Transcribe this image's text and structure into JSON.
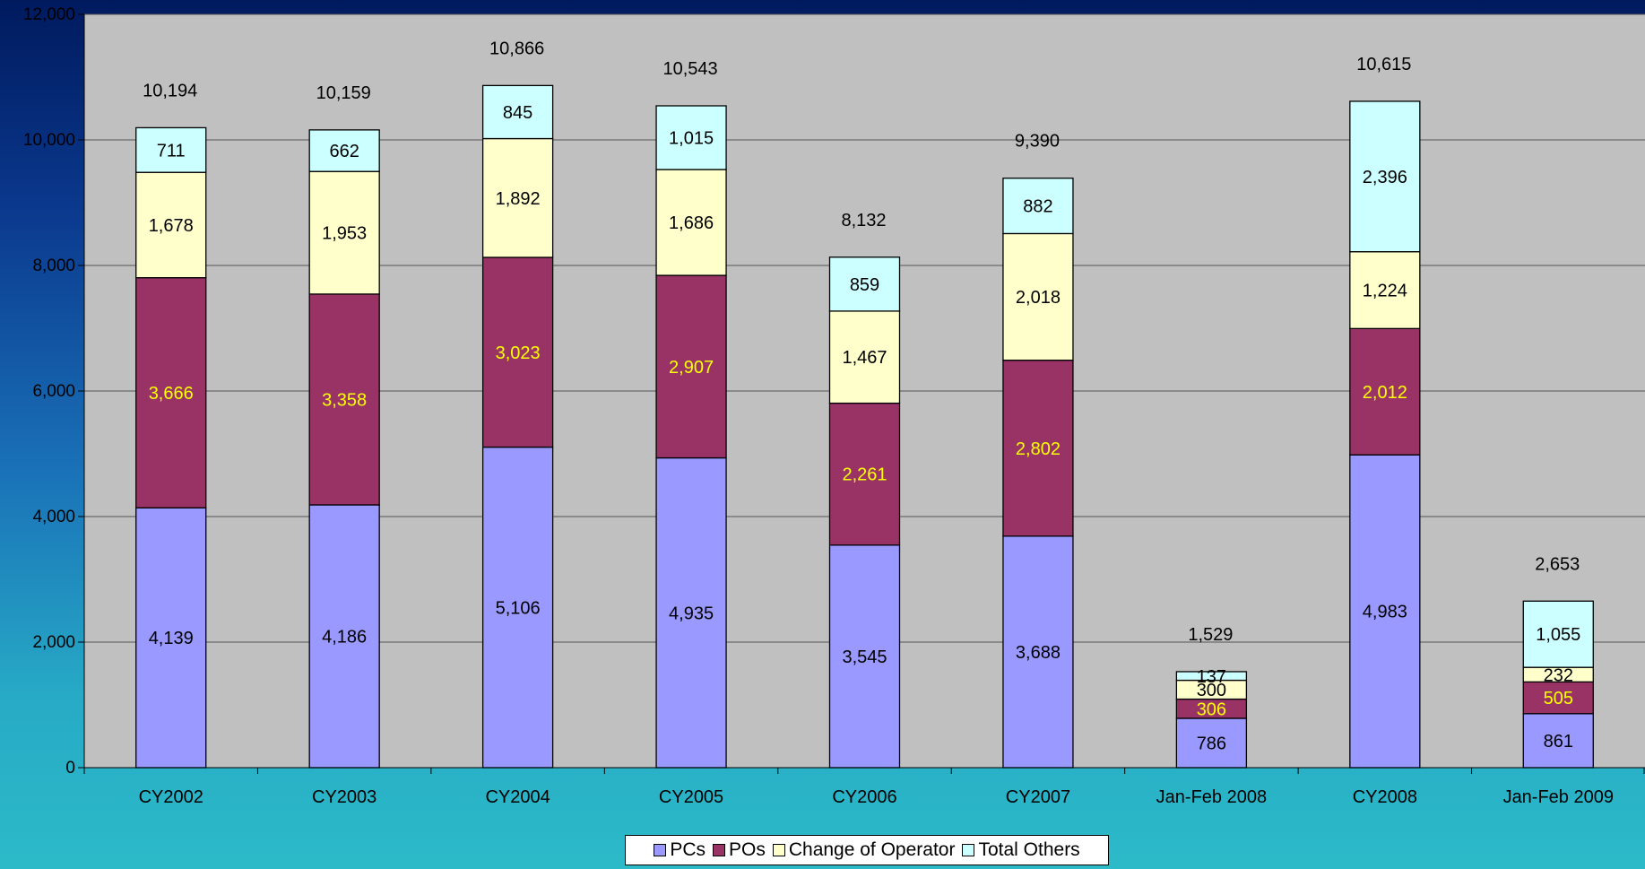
{
  "chart_data": {
    "type": "bar",
    "stacked": true,
    "title": "",
    "xlabel": "",
    "ylabel": "",
    "ylim": [
      0,
      12000
    ],
    "yticks": [
      0,
      2000,
      4000,
      6000,
      8000,
      10000,
      12000
    ],
    "ytick_labels": [
      "0",
      "2,000",
      "4,000",
      "6,000",
      "8,000",
      "10,000",
      "12,000"
    ],
    "grid": true,
    "legend_position": "bottom",
    "categories": [
      "CY2002",
      "CY2003",
      "CY2004",
      "CY2005",
      "CY2006",
      "CY2007",
      "Jan-Feb 2008",
      "CY2008",
      "Jan-Feb 2009"
    ],
    "series": [
      {
        "name": "PCs",
        "color": "#9999ff",
        "label_color": "#000000",
        "values": [
          4139,
          4186,
          5106,
          4935,
          3545,
          3688,
          786,
          4983,
          861
        ],
        "labels": [
          "4,139",
          "4,186",
          "5,106",
          "4,935",
          "3,545",
          "3,688",
          "786",
          "4,983",
          "861"
        ]
      },
      {
        "name": "POs",
        "color": "#993366",
        "label_color": "#ffff00",
        "values": [
          3666,
          3358,
          3023,
          2907,
          2261,
          2802,
          306,
          2012,
          505
        ],
        "labels": [
          "3,666",
          "3,358",
          "3,023",
          "2,907",
          "2,261",
          "2,802",
          "306",
          "2,012",
          "505"
        ]
      },
      {
        "name": "Change of Operator",
        "color": "#ffffcc",
        "label_color": "#000000",
        "values": [
          1678,
          1953,
          1892,
          1686,
          1467,
          2018,
          300,
          1224,
          232
        ],
        "labels": [
          "1,678",
          "1,953",
          "1,892",
          "1,686",
          "1,467",
          "2,018",
          "300",
          "1,224",
          "232"
        ]
      },
      {
        "name": "Total Others",
        "color": "#ccffff",
        "label_color": "#000000",
        "values": [
          711,
          662,
          845,
          1015,
          859,
          882,
          137,
          2396,
          1055
        ],
        "labels": [
          "711",
          "662",
          "845",
          "1,015",
          "859",
          "882",
          "137",
          "2,396",
          "1,055"
        ]
      }
    ],
    "totals": [
      10194,
      10159,
      10866,
      10543,
      8132,
      9390,
      1529,
      10615,
      2653
    ],
    "total_labels": [
      "10,194",
      "10,159",
      "10,866",
      "10,543",
      "8,132",
      "9,390",
      "1,529",
      "10,615",
      "2,653"
    ],
    "plot_background": "#c0c0c0"
  }
}
